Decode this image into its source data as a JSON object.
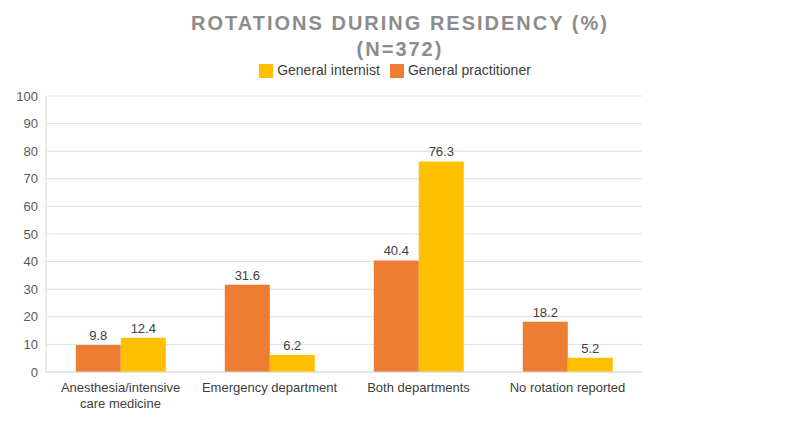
{
  "chart_data": {
    "type": "bar",
    "title": "ROTATIONS DURING RESIDENCY (%)",
    "subtitle": "(N=372)",
    "categories": [
      "Anesthesia/intensive care medicine",
      "Emergency department",
      "Both departments",
      "No rotation reported"
    ],
    "series": [
      {
        "name": "General practitioner",
        "color": "#ed7d31",
        "values": [
          9.8,
          31.6,
          40.4,
          18.2
        ]
      },
      {
        "name": "General internist",
        "color": "#ffc000",
        "values": [
          12.4,
          6.2,
          76.3,
          5.2
        ]
      }
    ],
    "ylim": [
      0,
      100
    ],
    "yticks": [
      0,
      10,
      20,
      30,
      40,
      50,
      60,
      70,
      80,
      90,
      100
    ],
    "grid": true,
    "legend": "top",
    "data_labels": true
  }
}
